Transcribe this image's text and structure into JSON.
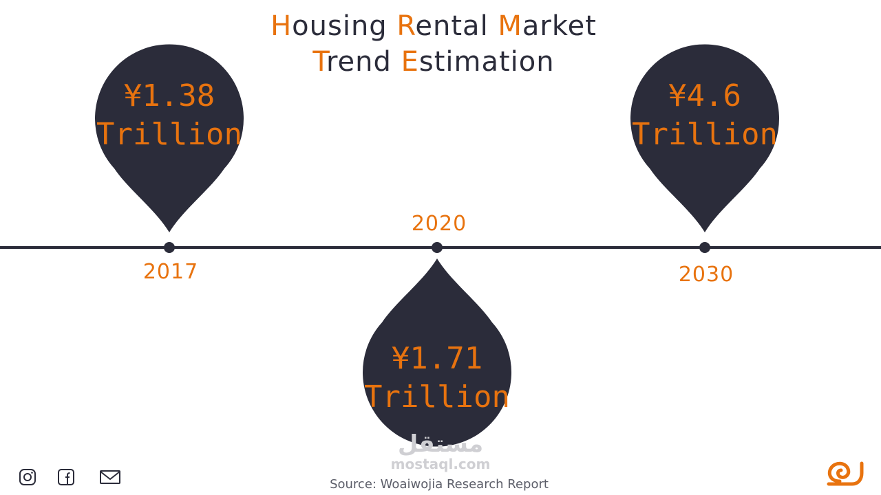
{
  "title": {
    "line1": [
      {
        "cap": "H",
        "rest": "ousing "
      },
      {
        "cap": "R",
        "rest": "ental "
      },
      {
        "cap": "M",
        "rest": "arket"
      }
    ],
    "line2": [
      {
        "cap": "T",
        "rest": "rend "
      },
      {
        "cap": "E",
        "rest": "stimation"
      }
    ]
  },
  "milestones": [
    {
      "year": "2017",
      "value_line1": "¥1.38",
      "value_line2": "Trillion"
    },
    {
      "year": "2020",
      "value_line1": "¥1.71",
      "value_line2": "Trillion"
    },
    {
      "year": "2030",
      "value_line1": "¥4.6",
      "value_line2": "Trillion"
    }
  ],
  "source": "Source: Woaiwojia Research Report",
  "watermark": {
    "arabic": "مستقل",
    "latin": "mostaql.com"
  },
  "social_icons": [
    "instagram-icon",
    "facebook-icon",
    "mail-icon"
  ],
  "colors": {
    "accent": "#e8730f",
    "dark": "#2b2c3a"
  }
}
